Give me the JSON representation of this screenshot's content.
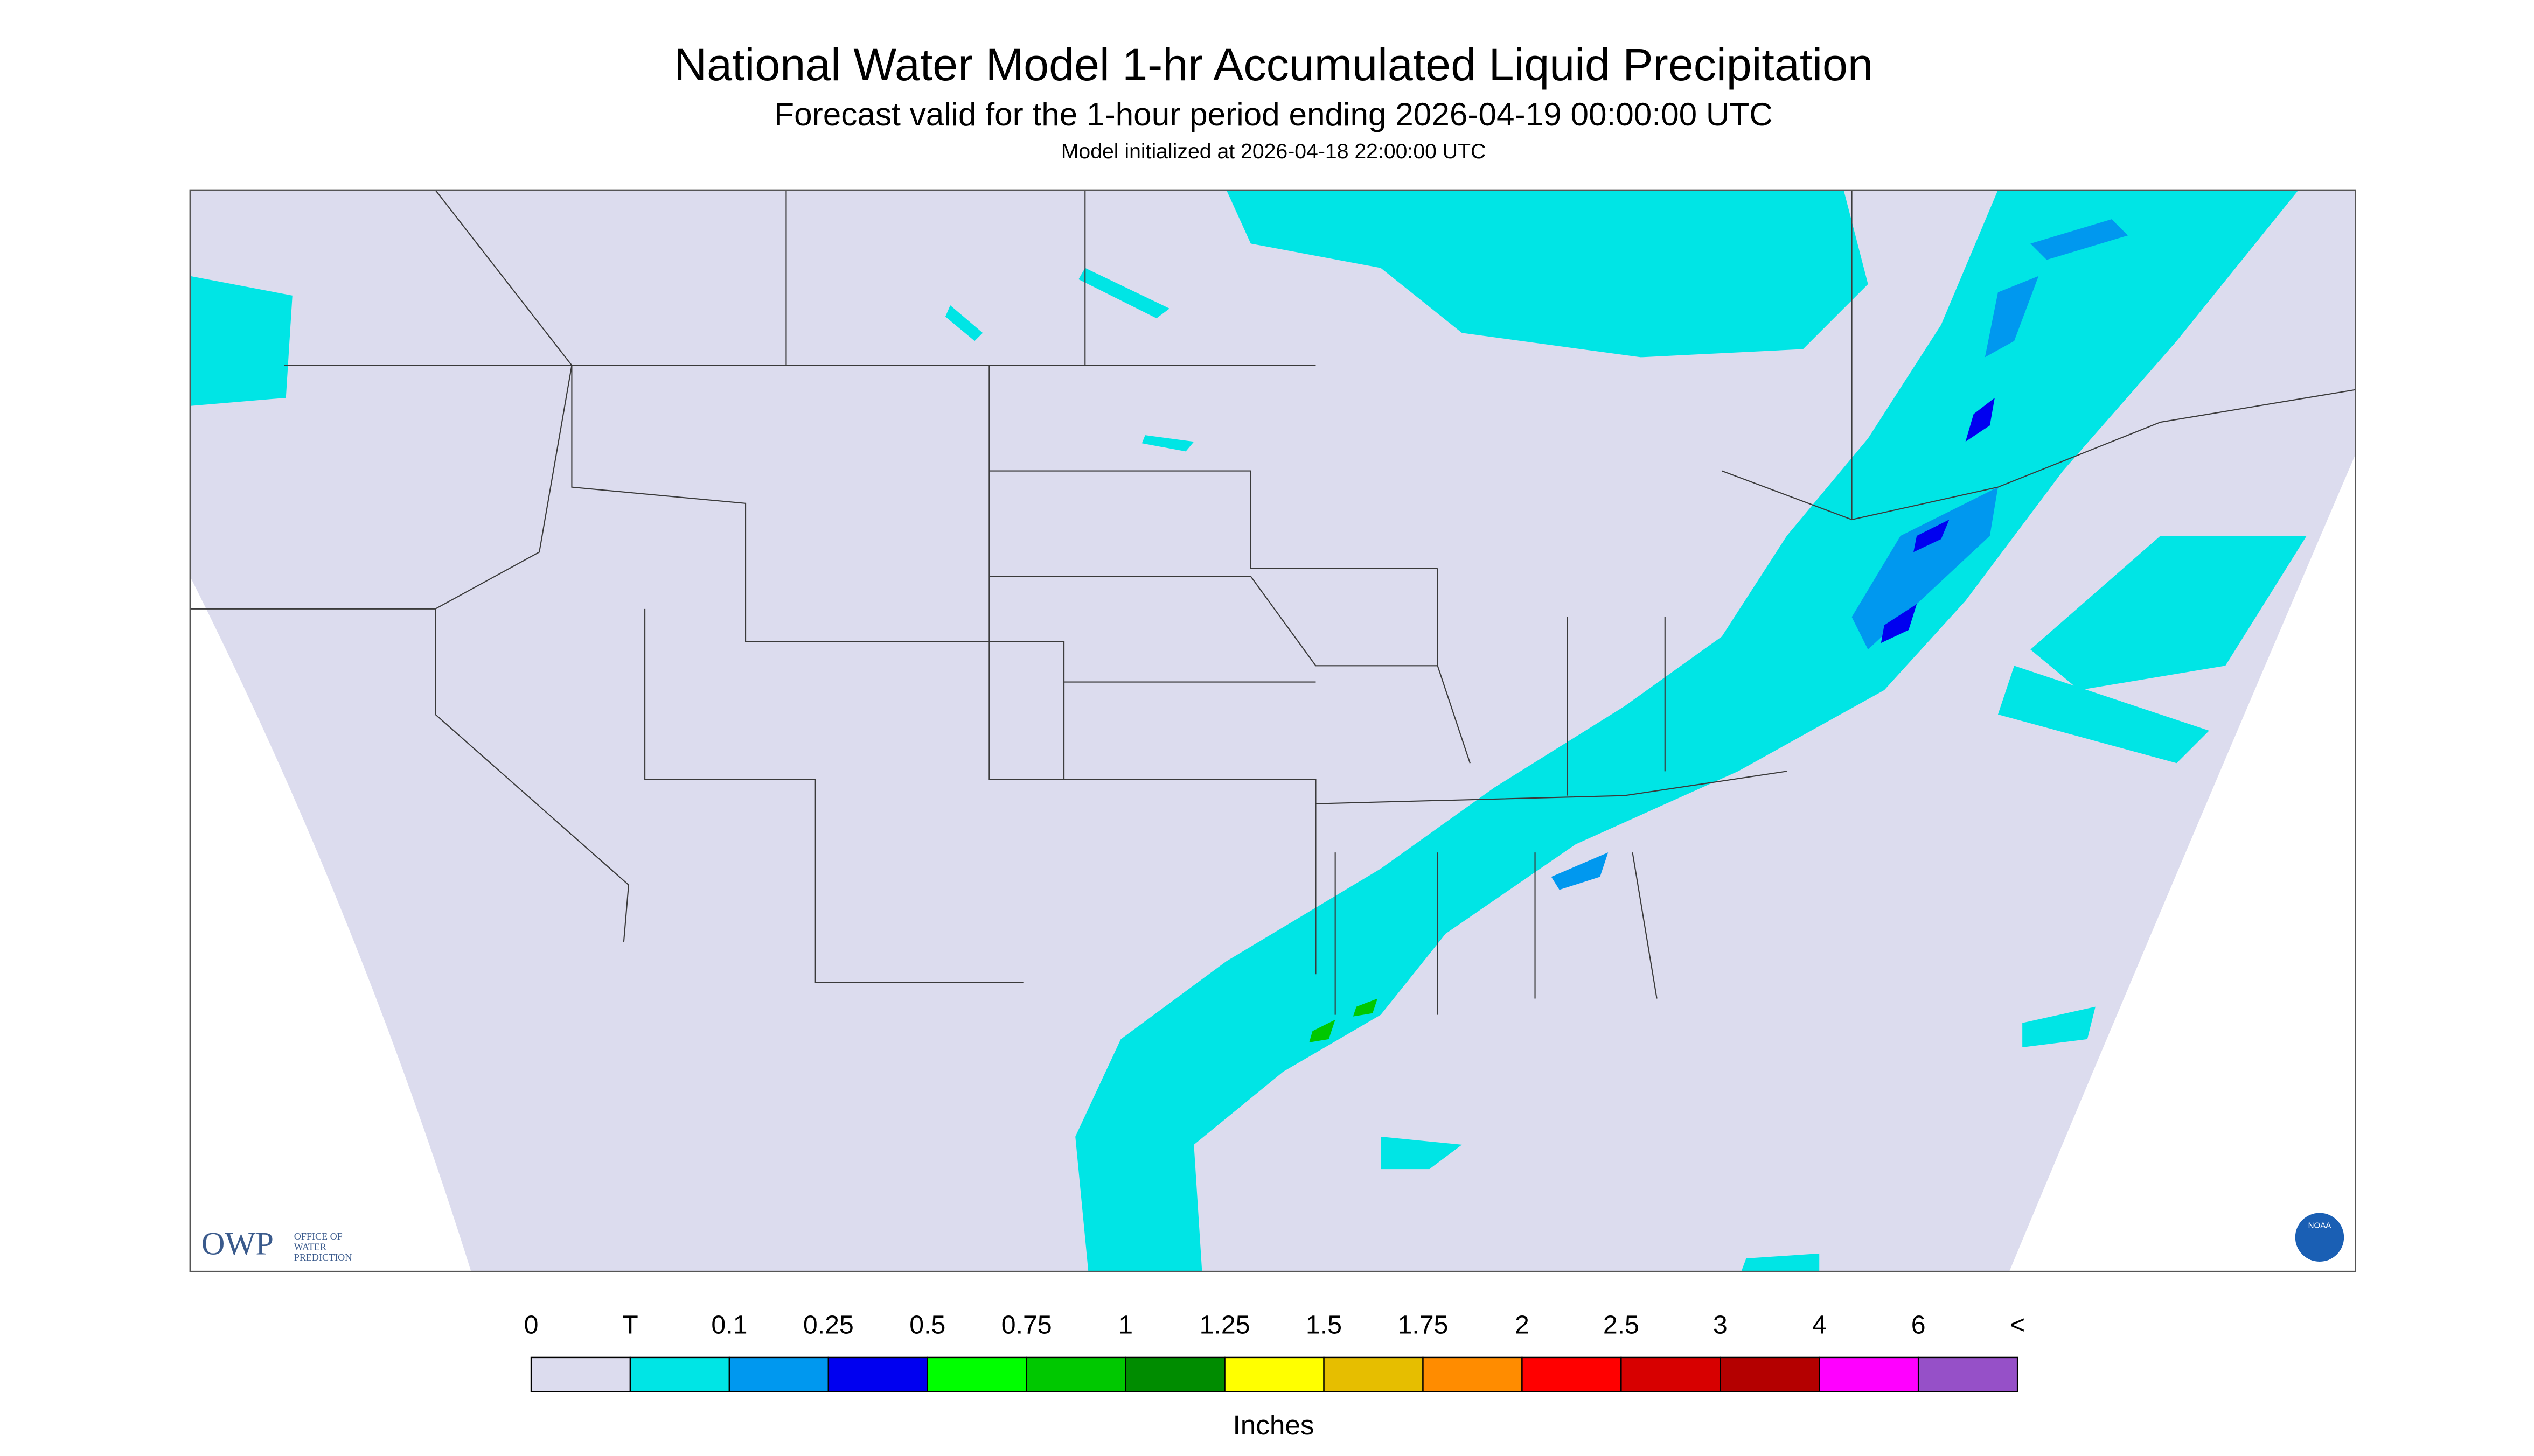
{
  "header": {
    "title": "National Water Model 1-hr Accumulated Liquid Precipitation",
    "subtitle": "Forecast valid for the 1-hour period ending 2026-04-19 00:00:00 UTC",
    "initialized": "Model initialized at 2026-04-18 22:00:00 UTC"
  },
  "logos": {
    "owp": "OWP",
    "owp_full": [
      "OFFICE OF",
      "WATER",
      "PREDICTION"
    ],
    "noaa": "NOAA"
  },
  "legend": {
    "labels": [
      "0",
      "T",
      "0.1",
      "0.25",
      "0.5",
      "0.75",
      "1",
      "1.25",
      "1.5",
      "1.75",
      "2",
      "2.5",
      "3",
      "4",
      "6",
      "<"
    ],
    "colors": [
      "#dcdcee",
      "#00e5e5",
      "#0098ef",
      "#0000f0",
      "#00ff00",
      "#00c800",
      "#008c00",
      "#ffff00",
      "#e6be00",
      "#ff8c00",
      "#ff0000",
      "#d70000",
      "#b40000",
      "#ff00ff",
      "#9650c8"
    ],
    "unit": "Inches"
  }
}
